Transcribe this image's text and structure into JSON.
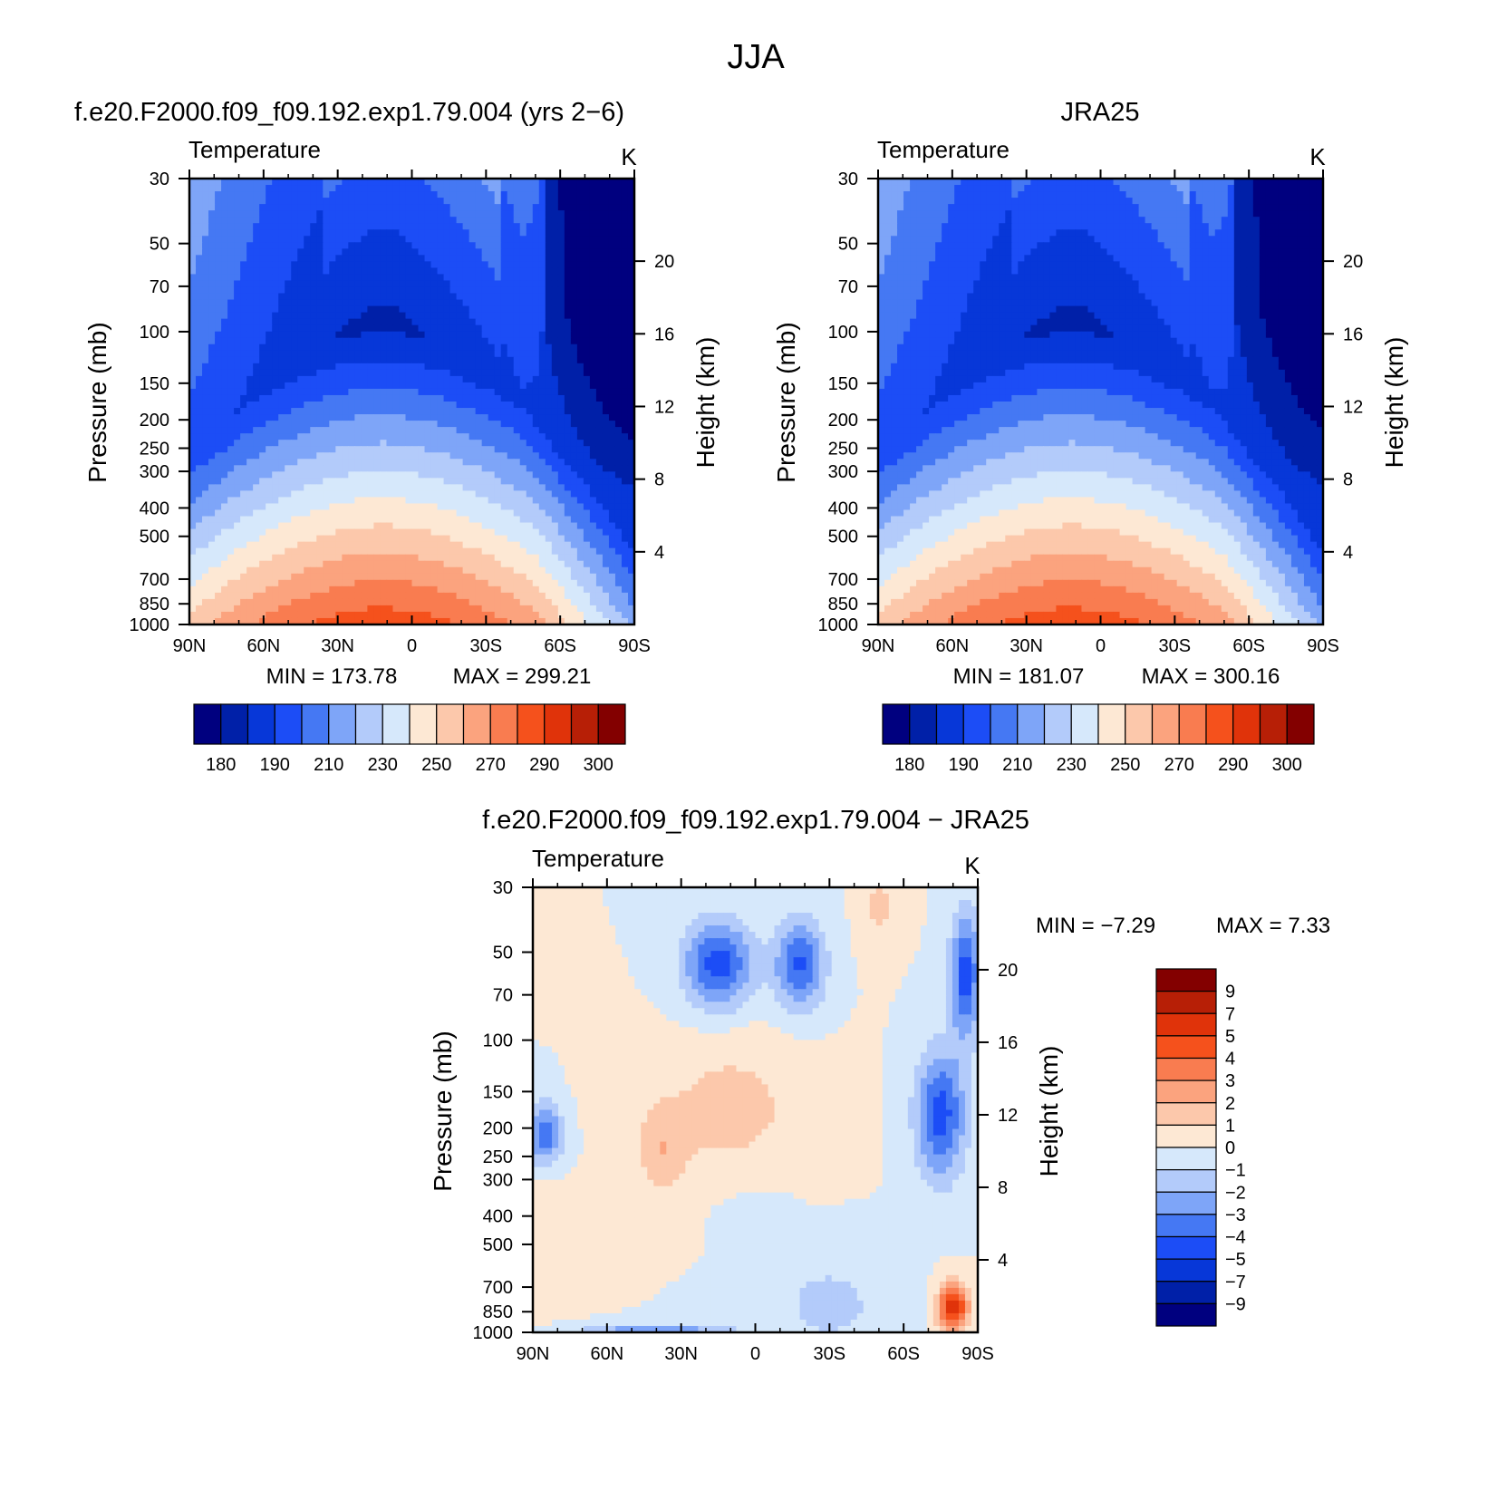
{
  "figure_title": "JJA",
  "chart_data": [
    {
      "type": "heatmap",
      "panel": "model",
      "title": "f.e20.F2000.f09_f09.192.exp1.79.004 (yrs 2−6)",
      "subtitle_left": "Temperature",
      "units": "K",
      "xlabel": "",
      "ylabel": "Pressure (mb)",
      "ylabel_right": "Height (km)",
      "x_ticks": [
        "90N",
        "60N",
        "30N",
        "0",
        "30S",
        "60S",
        "90S"
      ],
      "y_ticks": [
        "30",
        "50",
        "70",
        "100",
        "150",
        "200",
        "250",
        "300",
        "400",
        "500",
        "700",
        "850",
        "1000"
      ],
      "y2_ticks": [
        "20",
        "16",
        "12",
        "8",
        "4"
      ],
      "min_label": "MIN = 173.78",
      "max_label": "MAX = 299.21",
      "min": 173.78,
      "max": 299.21,
      "colorbar_labels": [
        "180",
        "190",
        "210",
        "230",
        "250",
        "270",
        "290",
        "300"
      ],
      "levels": [
        180,
        190,
        200,
        210,
        220,
        230,
        240,
        250,
        260,
        270,
        280,
        290,
        295,
        300
      ]
    },
    {
      "type": "heatmap",
      "panel": "obs",
      "title": "JRA25",
      "subtitle_left": "Temperature",
      "units": "K",
      "xlabel": "",
      "ylabel": "Pressure (mb)",
      "ylabel_right": "Height (km)",
      "x_ticks": [
        "90N",
        "60N",
        "30N",
        "0",
        "30S",
        "60S",
        "90S"
      ],
      "y_ticks": [
        "30",
        "50",
        "70",
        "100",
        "150",
        "200",
        "250",
        "300",
        "400",
        "500",
        "700",
        "850",
        "1000"
      ],
      "y2_ticks": [
        "20",
        "16",
        "12",
        "8",
        "4"
      ],
      "min_label": "MIN = 181.07",
      "max_label": "MAX = 300.16",
      "min": 181.07,
      "max": 300.16,
      "colorbar_labels": [
        "180",
        "190",
        "210",
        "230",
        "250",
        "270",
        "290",
        "300"
      ],
      "levels": [
        180,
        190,
        200,
        210,
        220,
        230,
        240,
        250,
        260,
        270,
        280,
        290,
        295,
        300
      ]
    },
    {
      "type": "heatmap",
      "panel": "difference",
      "title": "f.e20.F2000.f09_f09.192.exp1.79.004 − JRA25",
      "subtitle_left": "Temperature",
      "units": "K",
      "xlabel": "",
      "ylabel": "Pressure (mb)",
      "ylabel_right": "Height (km)",
      "x_ticks": [
        "90N",
        "60N",
        "30N",
        "0",
        "30S",
        "60S",
        "90S"
      ],
      "y_ticks": [
        "30",
        "50",
        "70",
        "100",
        "150",
        "200",
        "250",
        "300",
        "400",
        "500",
        "700",
        "850",
        "1000"
      ],
      "y2_ticks": [
        "20",
        "16",
        "12",
        "8",
        "4"
      ],
      "min_label": "MIN =  −7.29",
      "max_label": "MAX =    7.33",
      "min": -7.29,
      "max": 7.33,
      "colorbar_labels": [
        "9",
        "7",
        "5",
        "4",
        "3",
        "2",
        "1",
        "0",
        "−1",
        "−2",
        "−3",
        "−4",
        "−5",
        "−7",
        "−9"
      ],
      "levels": [
        -9,
        -7,
        -5,
        -4,
        -3,
        -2,
        -1,
        0,
        1,
        2,
        3,
        4,
        5,
        7,
        9
      ]
    }
  ],
  "colors": {
    "abs_scale": [
      "#00007f",
      "#0020a8",
      "#0737d8",
      "#1c4df6",
      "#4578f3",
      "#7ea5f8",
      "#b3cbfa",
      "#d6e8fb",
      "#fde8d4",
      "#fcc8ab",
      "#fba37e",
      "#f97c50",
      "#f5511c",
      "#e0330a",
      "#b71f06",
      "#830000"
    ],
    "diff_scale": [
      "#00007f",
      "#0020a8",
      "#0737d8",
      "#1c4df6",
      "#4578f3",
      "#7ea5f8",
      "#b3cbfa",
      "#d6e8fb",
      "#fde8d4",
      "#fcc8ab",
      "#fba37e",
      "#f97c50",
      "#f5511c",
      "#e0330a",
      "#b71f06",
      "#830000"
    ]
  }
}
